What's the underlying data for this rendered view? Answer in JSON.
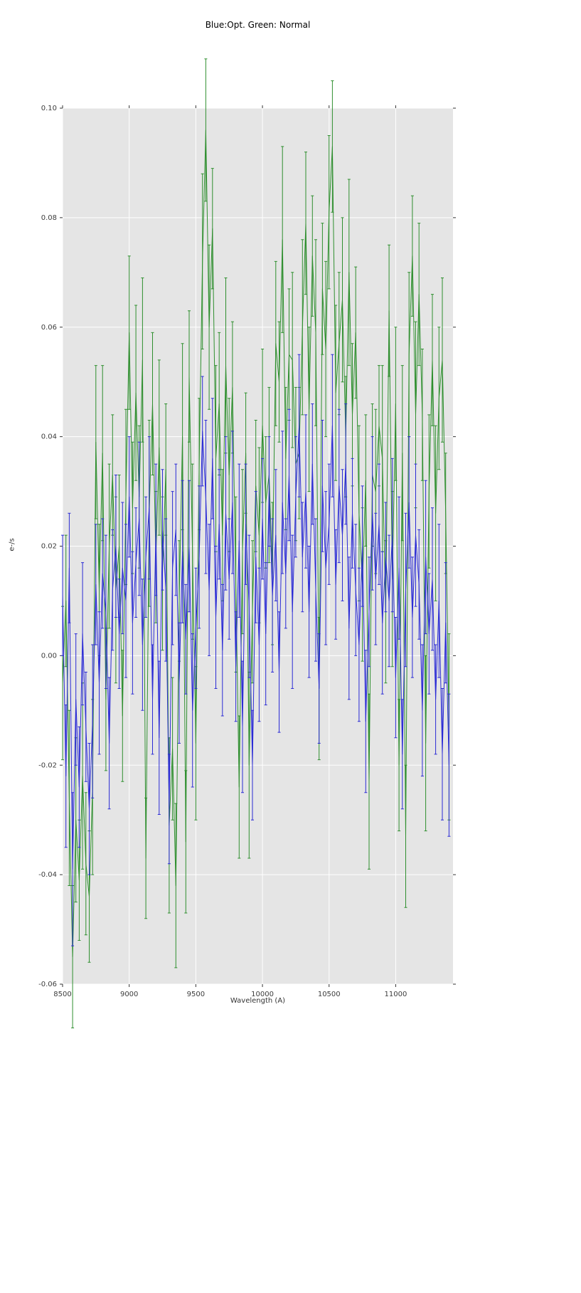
{
  "chart_data": {
    "type": "line",
    "title": "Blue:Opt. Green: Normal",
    "xlabel": "Wavelength (A)",
    "ylabel": "e-/s",
    "xlim": [
      8500,
      11430
    ],
    "ylim": [
      -0.06,
      0.1
    ],
    "grid": true,
    "legend": "none",
    "colors": {
      "figure_bg": "#ffffff",
      "plot_bg": "#e5e5e5",
      "grid_line": "#ffffff",
      "tick_mark": "#333333",
      "blue_series": "#2b2bd5",
      "green_series": "#2f8f2f"
    },
    "x_ticks": [
      8500,
      9000,
      9500,
      10000,
      10500,
      11000
    ],
    "x_tick_labels": [
      "8500",
      "9000",
      "9500",
      "10000",
      "10500",
      "11000"
    ],
    "y_ticks": [
      -0.06,
      -0.04,
      -0.02,
      0.0,
      0.02,
      0.04,
      0.06,
      0.08,
      0.1
    ],
    "y_tick_labels": [
      "-0.06",
      "-0.04",
      "-0.02",
      "0.00",
      "0.02",
      "0.04",
      "0.06",
      "0.08",
      "0.10"
    ],
    "x_start": 8500,
    "x_step": 25,
    "series": [
      {
        "name": "Normal",
        "color": "#2f8f2f",
        "yerr_pattern": [
          0.014,
          0.012,
          0.016,
          0.013,
          0.015,
          0.011,
          0.017,
          0.013,
          0.012,
          0.016
        ],
        "y": [
          -0.005,
          0.01,
          -0.026,
          -0.055,
          -0.03,
          -0.041,
          -0.022,
          -0.038,
          -0.044,
          -0.024,
          0.039,
          0.012,
          0.037,
          -0.008,
          0.02,
          0.033,
          0.012,
          0.02,
          -0.011,
          0.029,
          0.059,
          0.027,
          0.048,
          0.029,
          0.054,
          -0.037,
          0.026,
          0.046,
          0.018,
          0.038,
          0.015,
          0.034,
          -0.031,
          -0.017,
          -0.042,
          0.01,
          0.04,
          -0.034,
          0.051,
          0.019,
          -0.016,
          0.035,
          0.072,
          0.096,
          0.06,
          0.078,
          0.036,
          0.046,
          0.022,
          0.053,
          0.033,
          0.049,
          0.013,
          -0.024,
          0.019,
          0.037,
          -0.02,
          0.008,
          0.031,
          0.022,
          0.042,
          0.028,
          0.033,
          0.015,
          0.057,
          0.05,
          0.076,
          0.036,
          0.055,
          0.054,
          0.035,
          0.037,
          0.06,
          0.079,
          0.045,
          0.073,
          0.059,
          -0.006,
          0.067,
          0.056,
          0.081,
          0.093,
          0.048,
          0.057,
          0.065,
          0.04,
          0.07,
          0.044,
          0.059,
          0.026,
          0.013,
          0.032,
          -0.023,
          0.033,
          0.03,
          0.042,
          0.036,
          0.008,
          0.063,
          0.014,
          0.046,
          -0.02,
          0.037,
          -0.033,
          0.055,
          0.073,
          0.044,
          0.066,
          0.044,
          -0.016,
          0.03,
          0.054,
          0.026,
          0.047,
          0.054,
          0.026,
          -0.013
        ]
      },
      {
        "name": "Opt",
        "color": "#2b2bd5",
        "yerr_pattern": [
          0.011,
          0.013,
          0.01,
          0.014,
          0.012,
          0.011,
          0.013,
          0.01,
          0.012,
          0.014
        ],
        "y": [
          0.011,
          -0.022,
          0.016,
          -0.039,
          -0.008,
          -0.024,
          0.004,
          -0.013,
          -0.028,
          -0.012,
          0.013,
          -0.005,
          0.015,
          0.008,
          -0.016,
          0.012,
          0.02,
          0.004,
          0.016,
          0.01,
          0.029,
          0.006,
          0.017,
          0.025,
          0.002,
          0.018,
          0.027,
          -0.008,
          0.023,
          -0.015,
          0.023,
          0.012,
          -0.028,
          0.016,
          0.023,
          -0.005,
          0.019,
          0.003,
          0.02,
          -0.01,
          0.005,
          0.018,
          0.041,
          0.029,
          0.012,
          0.036,
          0.007,
          0.024,
          0.001,
          0.026,
          0.014,
          0.028,
          -0.002,
          0.021,
          -0.013,
          0.024,
          0.009,
          -0.02,
          0.018,
          0.002,
          0.025,
          0.004,
          0.03,
          0.011,
          0.022,
          -0.003,
          0.028,
          0.015,
          0.033,
          0.008,
          0.029,
          0.042,
          0.018,
          0.03,
          0.008,
          0.035,
          0.012,
          -0.006,
          0.031,
          0.016,
          0.024,
          0.042,
          0.013,
          0.031,
          0.022,
          0.035,
          0.005,
          0.026,
          0.012,
          0.002,
          0.02,
          -0.012,
          0.008,
          0.026,
          0.014,
          0.024,
          0.006,
          0.018,
          0.01,
          0.022,
          -0.004,
          0.016,
          -0.018,
          0.012,
          0.028,
          0.007,
          0.022,
          0.013,
          -0.01,
          0.018,
          0.004,
          0.014,
          -0.008,
          0.01,
          -0.018,
          0.006,
          -0.02
        ]
      }
    ]
  }
}
